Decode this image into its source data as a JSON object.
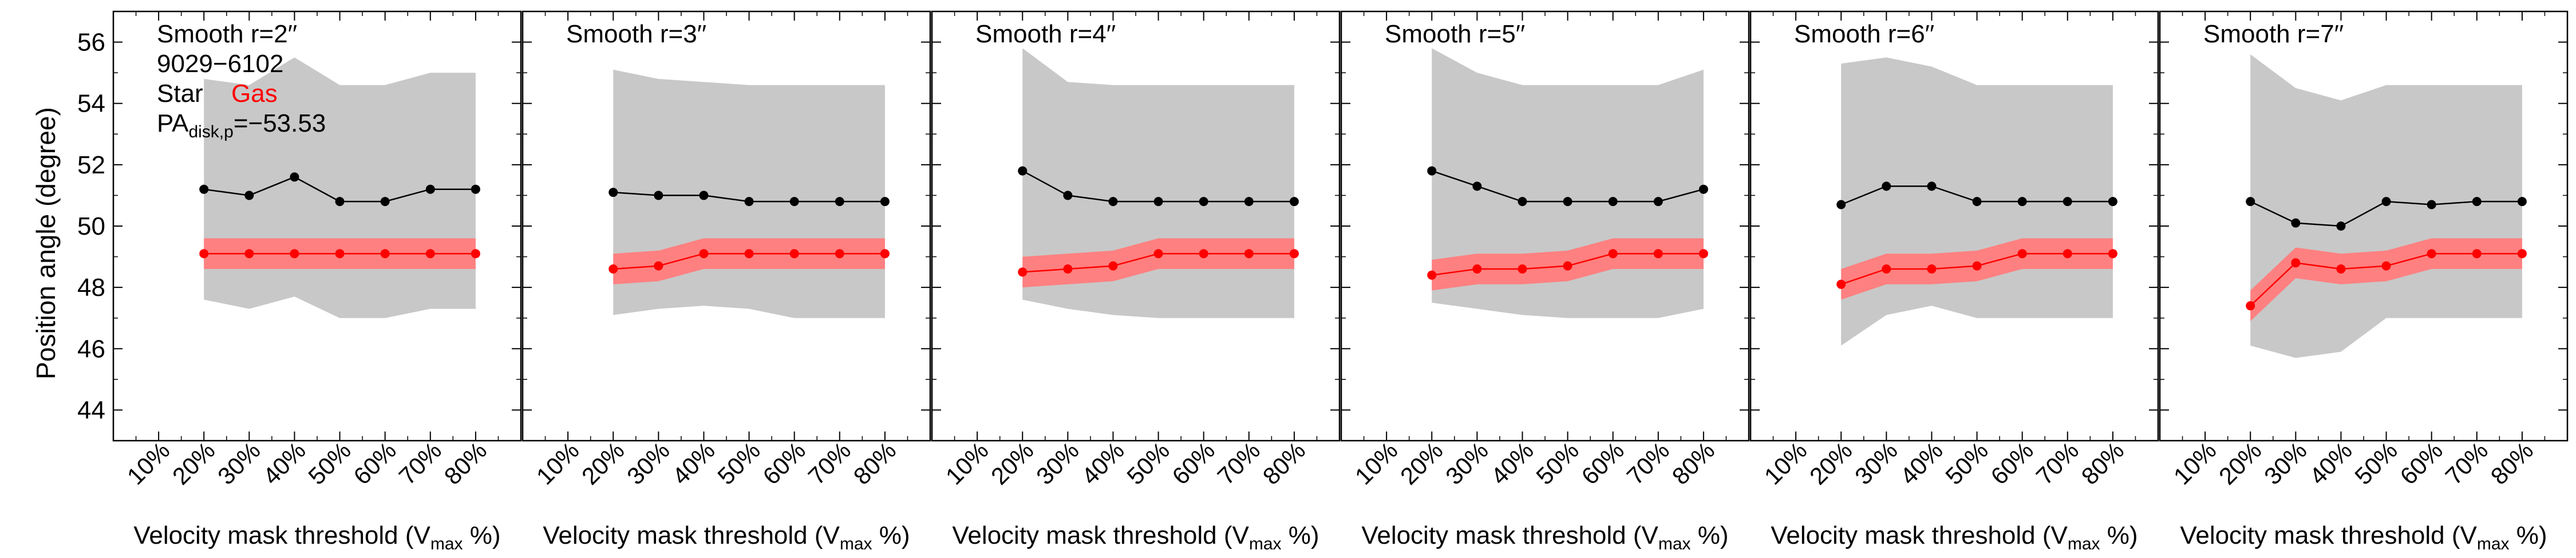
{
  "figure": {
    "ylabel": "Position angle (degree)",
    "xlabel_main": "Velocity mask threshold (V",
    "xlabel_sub": "max",
    "xlabel_tail": " %)",
    "x_tick_labels": [
      "10%",
      "20%",
      "30%",
      "40%",
      "50%",
      "60%",
      "70%",
      "80%"
    ],
    "y_tick_labels": [
      "44",
      "46",
      "48",
      "50",
      "52",
      "54",
      "56"
    ],
    "legend": {
      "object_id": "9029−6102",
      "star_label": "Star",
      "gas_label": "Gas",
      "pa_main": "PA",
      "pa_sub": "disk,p",
      "pa_value": "=−53.53"
    },
    "colors": {
      "star": "#000000",
      "gas": "#ff0000",
      "gas_band": "#ff8080",
      "star_band": "#c8c8c8",
      "frame": "#000000"
    }
  },
  "chart_data": [
    {
      "type": "line",
      "title": "Smooth r=2′′",
      "x": [
        20,
        30,
        40,
        50,
        60,
        70,
        80
      ],
      "ylim": [
        43,
        57
      ],
      "series": [
        {
          "name": "Star",
          "values": [
            51.2,
            51.0,
            51.6,
            50.8,
            50.8,
            51.2,
            51.2
          ],
          "band_low": [
            47.6,
            47.3,
            47.7,
            47.0,
            47.0,
            47.3,
            47.3
          ],
          "band_high": [
            54.8,
            54.6,
            55.5,
            54.6,
            54.6,
            55.0,
            55.0
          ]
        },
        {
          "name": "Gas",
          "values": [
            49.1,
            49.1,
            49.1,
            49.1,
            49.1,
            49.1,
            49.1
          ],
          "band_low": [
            48.6,
            48.6,
            48.6,
            48.6,
            48.6,
            48.6,
            48.6
          ],
          "band_high": [
            49.6,
            49.6,
            49.6,
            49.6,
            49.6,
            49.6,
            49.6
          ]
        }
      ]
    },
    {
      "type": "line",
      "title": "Smooth r=3′′",
      "x": [
        20,
        30,
        40,
        50,
        60,
        70,
        80
      ],
      "ylim": [
        43,
        57
      ],
      "series": [
        {
          "name": "Star",
          "values": [
            51.1,
            51.0,
            51.0,
            50.8,
            50.8,
            50.8,
            50.8
          ],
          "band_low": [
            47.1,
            47.3,
            47.4,
            47.3,
            47.0,
            47.0,
            47.0
          ],
          "band_high": [
            55.1,
            54.8,
            54.7,
            54.6,
            54.6,
            54.6,
            54.6
          ]
        },
        {
          "name": "Gas",
          "values": [
            48.6,
            48.7,
            49.1,
            49.1,
            49.1,
            49.1,
            49.1
          ],
          "band_low": [
            48.1,
            48.2,
            48.6,
            48.6,
            48.6,
            48.6,
            48.6
          ],
          "band_high": [
            49.1,
            49.2,
            49.6,
            49.6,
            49.6,
            49.6,
            49.6
          ]
        }
      ]
    },
    {
      "type": "line",
      "title": "Smooth r=4′′",
      "x": [
        20,
        30,
        40,
        50,
        60,
        70,
        80
      ],
      "ylim": [
        43,
        57
      ],
      "series": [
        {
          "name": "Star",
          "values": [
            51.8,
            51.0,
            50.8,
            50.8,
            50.8,
            50.8,
            50.8
          ],
          "band_low": [
            47.6,
            47.3,
            47.1,
            47.0,
            47.0,
            47.0,
            47.0
          ],
          "band_high": [
            55.8,
            54.7,
            54.6,
            54.6,
            54.6,
            54.6,
            54.6
          ]
        },
        {
          "name": "Gas",
          "values": [
            48.5,
            48.6,
            48.7,
            49.1,
            49.1,
            49.1,
            49.1
          ],
          "band_low": [
            48.0,
            48.1,
            48.2,
            48.6,
            48.6,
            48.6,
            48.6
          ],
          "band_high": [
            49.0,
            49.1,
            49.2,
            49.6,
            49.6,
            49.6,
            49.6
          ]
        }
      ]
    },
    {
      "type": "line",
      "title": "Smooth r=5′′",
      "x": [
        20,
        30,
        40,
        50,
        60,
        70,
        80
      ],
      "ylim": [
        43,
        57
      ],
      "series": [
        {
          "name": "Star",
          "values": [
            51.8,
            51.3,
            50.8,
            50.8,
            50.8,
            50.8,
            51.2
          ],
          "band_low": [
            47.5,
            47.3,
            47.1,
            47.0,
            47.0,
            47.0,
            47.3
          ],
          "band_high": [
            55.8,
            55.0,
            54.6,
            54.6,
            54.6,
            54.6,
            55.1
          ]
        },
        {
          "name": "Gas",
          "values": [
            48.4,
            48.6,
            48.6,
            48.7,
            49.1,
            49.1,
            49.1
          ],
          "band_low": [
            47.9,
            48.1,
            48.1,
            48.2,
            48.6,
            48.6,
            48.6
          ],
          "band_high": [
            48.9,
            49.1,
            49.1,
            49.2,
            49.6,
            49.6,
            49.6
          ]
        }
      ]
    },
    {
      "type": "line",
      "title": "Smooth r=6′′",
      "x": [
        20,
        30,
        40,
        50,
        60,
        70,
        80
      ],
      "ylim": [
        43,
        57
      ],
      "series": [
        {
          "name": "Star",
          "values": [
            50.7,
            51.3,
            51.3,
            50.8,
            50.8,
            50.8,
            50.8
          ],
          "band_low": [
            46.1,
            47.1,
            47.4,
            47.0,
            47.0,
            47.0,
            47.0
          ],
          "band_high": [
            55.3,
            55.5,
            55.2,
            54.6,
            54.6,
            54.6,
            54.6
          ]
        },
        {
          "name": "Gas",
          "values": [
            48.1,
            48.6,
            48.6,
            48.7,
            49.1,
            49.1,
            49.1
          ],
          "band_low": [
            47.6,
            48.1,
            48.1,
            48.2,
            48.6,
            48.6,
            48.6
          ],
          "band_high": [
            48.6,
            49.1,
            49.1,
            49.2,
            49.6,
            49.6,
            49.6
          ]
        }
      ]
    },
    {
      "type": "line",
      "title": "Smooth r=7′′",
      "x": [
        20,
        30,
        40,
        50,
        60,
        70,
        80
      ],
      "ylim": [
        43,
        57
      ],
      "series": [
        {
          "name": "Star",
          "values": [
            50.8,
            50.1,
            50.0,
            50.8,
            50.7,
            50.8,
            50.8
          ],
          "band_low": [
            46.1,
            45.7,
            45.9,
            47.0,
            47.0,
            47.0,
            47.0
          ],
          "band_high": [
            55.6,
            54.5,
            54.1,
            54.6,
            54.6,
            54.6,
            54.6
          ]
        },
        {
          "name": "Gas",
          "values": [
            47.4,
            48.8,
            48.6,
            48.7,
            49.1,
            49.1,
            49.1
          ],
          "band_low": [
            46.9,
            48.3,
            48.1,
            48.2,
            48.6,
            48.6,
            48.6
          ],
          "band_high": [
            47.9,
            49.3,
            49.1,
            49.2,
            49.6,
            49.6,
            49.6
          ]
        }
      ]
    }
  ]
}
